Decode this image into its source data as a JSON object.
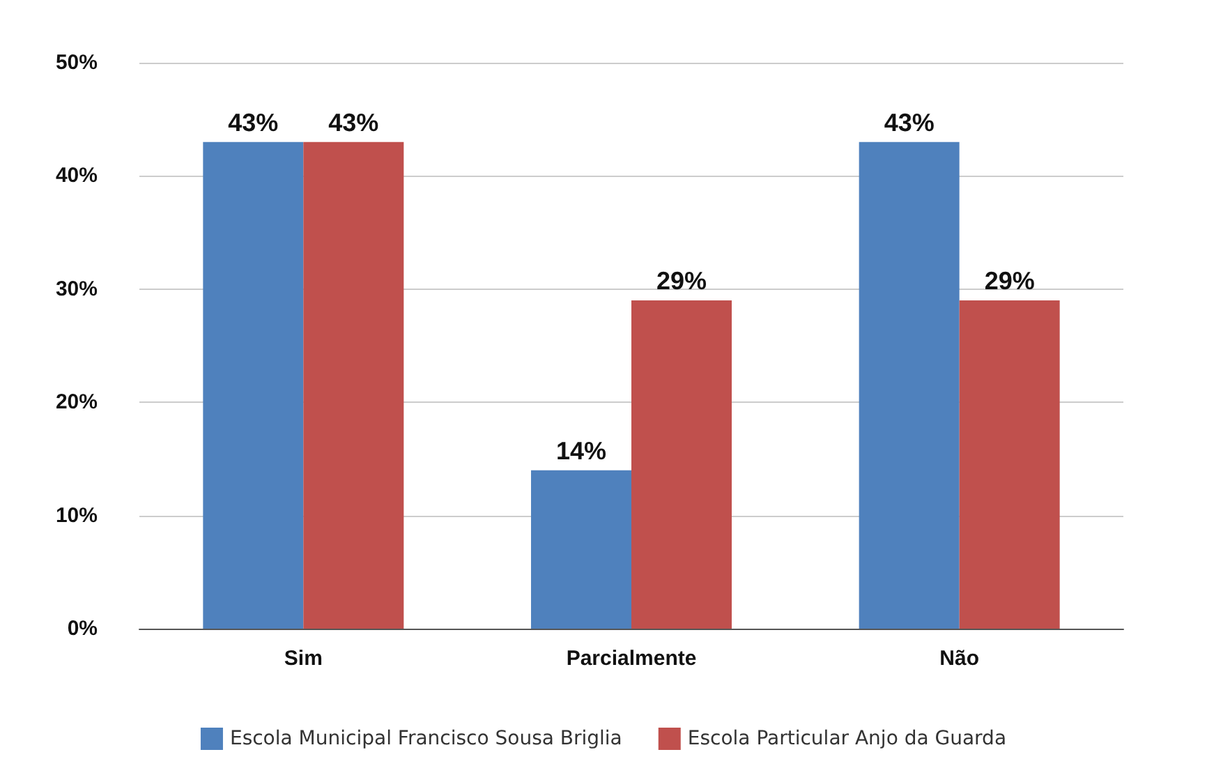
{
  "chart_data": {
    "type": "bar",
    "categories": [
      "Sim",
      "Parcialmente",
      "Não"
    ],
    "series": [
      {
        "name": "Escola Municipal Francisco Sousa Briglia",
        "color": "#4f81bd",
        "values": [
          43,
          14,
          43
        ],
        "value_labels": [
          "43%",
          "14%",
          "43%"
        ]
      },
      {
        "name": "Escola Particular Anjo da Guarda",
        "color": "#c0504d",
        "values": [
          43,
          29,
          29
        ],
        "value_labels": [
          "43%",
          "29%",
          "29%"
        ]
      }
    ],
    "ylim": [
      0,
      50
    ],
    "yticks": [
      {
        "value": 0,
        "label": "0%"
      },
      {
        "value": 10,
        "label": "10%"
      },
      {
        "value": 20,
        "label": "20%"
      },
      {
        "value": 30,
        "label": "30%"
      },
      {
        "value": 40,
        "label": "40%"
      },
      {
        "value": 50,
        "label": "50%"
      }
    ],
    "grid": "y",
    "legend": "bottom"
  }
}
